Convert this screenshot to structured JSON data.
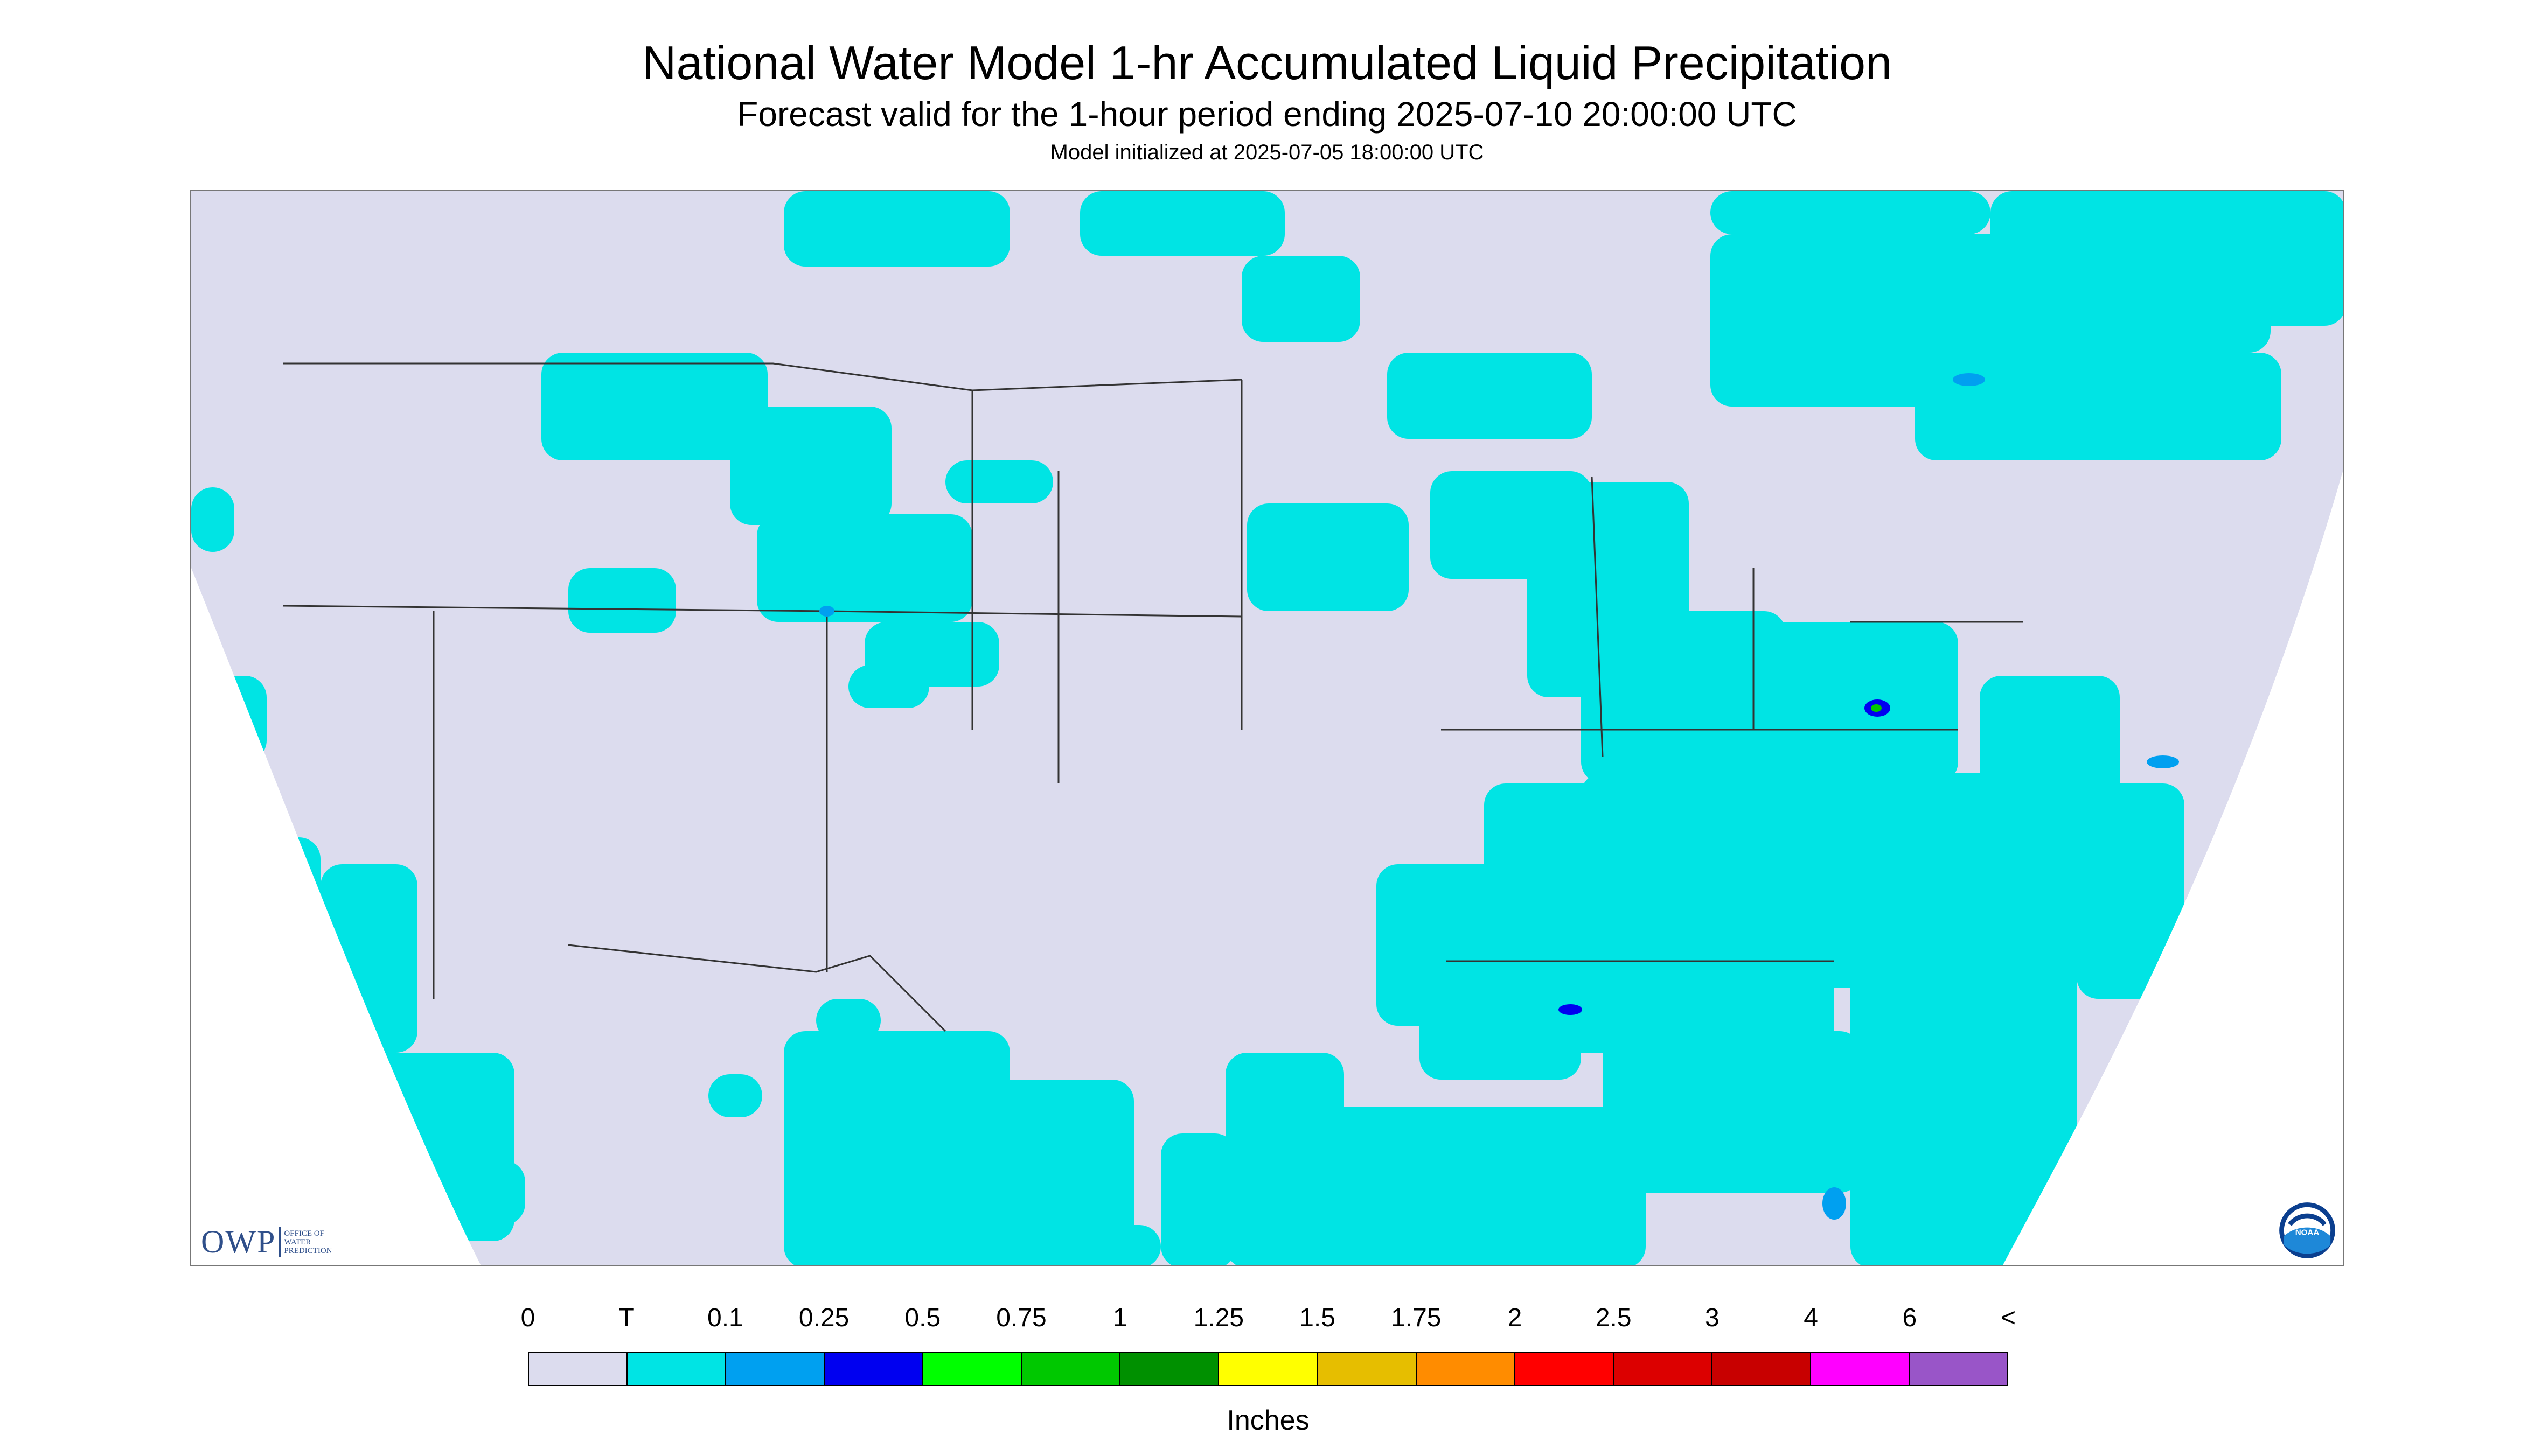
{
  "header": {
    "title": "National Water Model 1-hr Accumulated Liquid Precipitation",
    "subtitle": "Forecast valid for the 1-hour period ending 2025-07-10 20:00:00 UTC",
    "init": "Model initialized at 2025-07-05 18:00:00 UTC"
  },
  "map": {
    "background_color": "#DCDCEE",
    "outside_color": "#FFFFFF",
    "primary_precip_color": "#00E4E4",
    "boundary_color": "#333333",
    "logos": {
      "owp_letters": "OWP",
      "owp_words": [
        "OFFICE OF",
        "WATER",
        "PREDICTION"
      ],
      "noaa_text": "NOAA"
    }
  },
  "legend": {
    "labels": [
      "0",
      "T",
      "0.1",
      "0.25",
      "0.5",
      "0.75",
      "1",
      "1.25",
      "1.5",
      "1.75",
      "2",
      "2.5",
      "3",
      "4",
      "6",
      "<"
    ],
    "colors": [
      "#DCDCEE",
      "#00E4E4",
      "#00A0F0",
      "#0000F0",
      "#00FF00",
      "#00C800",
      "#009000",
      "#FFFF00",
      "#E6BE00",
      "#FF8C00",
      "#FF0000",
      "#DC0000",
      "#C80000",
      "#FF00FF",
      "#9955C8"
    ],
    "units": "Inches"
  }
}
